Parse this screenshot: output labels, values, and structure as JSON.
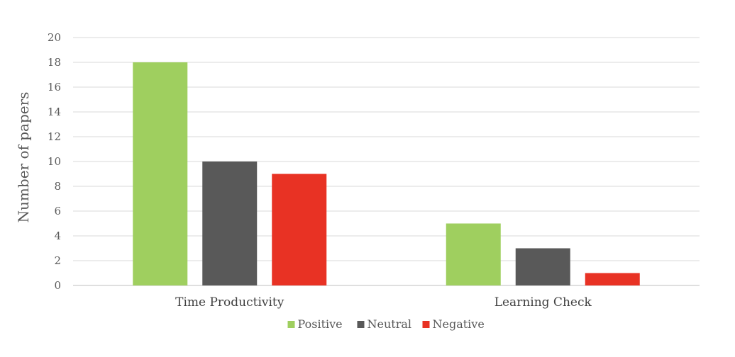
{
  "chart_data": {
    "type": "bar",
    "categories": [
      "Time Productivity",
      "Learning Check"
    ],
    "series": [
      {
        "name": "Positive",
        "values": [
          18,
          5
        ],
        "color": "#9fcf5f"
      },
      {
        "name": "Neutral",
        "values": [
          10,
          3
        ],
        "color": "#595959"
      },
      {
        "name": "Negative",
        "values": [
          9,
          1
        ],
        "color": "#e83224"
      }
    ],
    "ylabel": "Number of papers",
    "ylim": [
      0,
      20
    ],
    "yticks": [
      0,
      2,
      4,
      6,
      8,
      10,
      12,
      14,
      16,
      18,
      20
    ],
    "grid": true,
    "legend_position": "bottom"
  }
}
